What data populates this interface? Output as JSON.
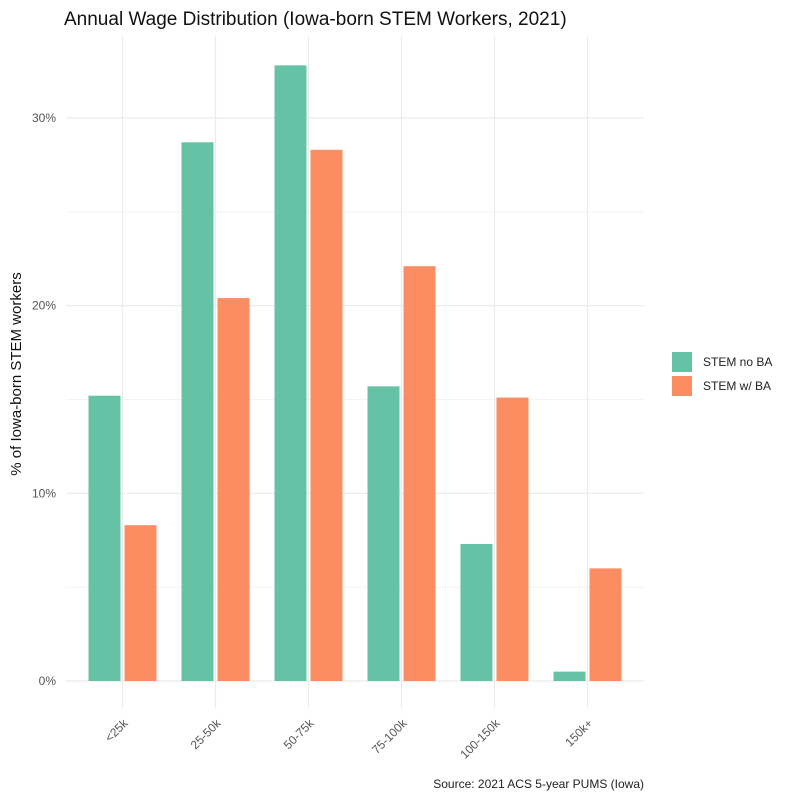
{
  "chart_data": {
    "type": "bar",
    "title": "Annual Wage Distribution (Iowa-born STEM Workers, 2021)",
    "xlabel": "",
    "ylabel": "% of Iowa-born STEM workers",
    "caption": "Source: 2021 ACS 5-year PUMS (Iowa)",
    "categories": [
      "<25k",
      "25-50k",
      "50-75k",
      "75-100k",
      "100-150k",
      "150k+"
    ],
    "series": [
      {
        "name": "STEM no BA",
        "color": "#66c2a5",
        "values": [
          15.2,
          28.7,
          32.8,
          15.7,
          7.3,
          0.5
        ]
      },
      {
        "name": "STEM w/ BA",
        "color": "#fc8d62",
        "values": [
          8.3,
          20.4,
          28.3,
          22.1,
          15.1,
          6.0
        ]
      }
    ],
    "ylim": [
      0,
      34
    ],
    "y_ticks": [
      0,
      10,
      20,
      30
    ],
    "y_tick_labels": [
      "0%",
      "10%",
      "20%",
      "30%"
    ],
    "grid": true,
    "legend_position": "right"
  }
}
